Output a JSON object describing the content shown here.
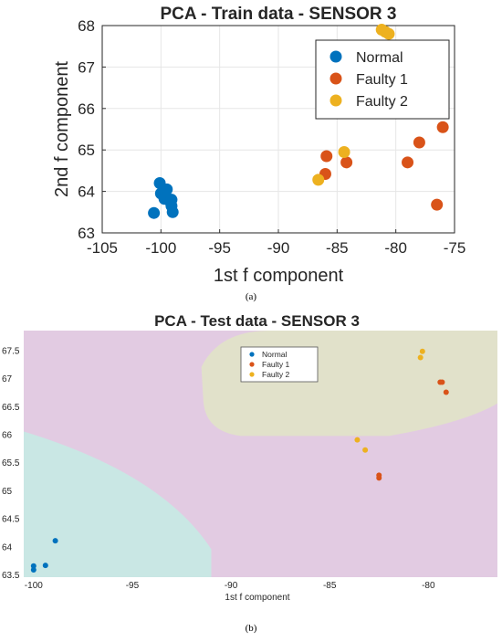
{
  "captions": {
    "a": "(a)",
    "b": "(b)"
  },
  "colors": {
    "normal": "#0072BD",
    "faulty1": "#D95319",
    "faulty2": "#EDB120",
    "region_normal": "#C9E7E4",
    "region_faulty1": "#E2CBE2",
    "region_faulty2": "#E1E1CA"
  },
  "chart_data": [
    {
      "type": "scatter",
      "title": "PCA - Train data - SENSOR 3",
      "xlabel": "1st f component",
      "ylabel": "2nd f component",
      "xlim": [
        -105,
        -75
      ],
      "ylim": [
        63,
        68
      ],
      "xticks": [
        -105,
        -100,
        -95,
        -90,
        -85,
        -80,
        -75
      ],
      "yticks": [
        63,
        64,
        65,
        66,
        67,
        68
      ],
      "grid": true,
      "legend_position": "top-right",
      "series": [
        {
          "name": "Normal",
          "color": "#0072BD",
          "points": [
            [
              -100.6,
              63.48
            ],
            [
              -100.1,
              64.2
            ],
            [
              -100.0,
              63.95
            ],
            [
              -99.7,
              63.82
            ],
            [
              -99.6,
              64.0
            ],
            [
              -99.5,
              64.05
            ],
            [
              -99.2,
              63.75
            ],
            [
              -99.1,
              63.65
            ],
            [
              -99.0,
              63.5
            ],
            [
              -99.1,
              63.8
            ]
          ]
        },
        {
          "name": "Faulty 1",
          "color": "#D95319",
          "points": [
            [
              -86.0,
              64.42
            ],
            [
              -85.9,
              64.85
            ],
            [
              -84.2,
              64.7
            ],
            [
              -79.0,
              64.7
            ],
            [
              -78.0,
              65.18
            ],
            [
              -76.5,
              63.68
            ],
            [
              -76.0,
              65.55
            ]
          ]
        },
        {
          "name": "Faulty 2",
          "color": "#EDB120",
          "points": [
            [
              -86.6,
              64.28
            ],
            [
              -84.4,
              64.95
            ],
            [
              -81.2,
              67.9
            ],
            [
              -80.9,
              67.85
            ],
            [
              -80.6,
              67.8
            ]
          ]
        }
      ]
    },
    {
      "type": "scatter",
      "title": "PCA - Test data - SENSOR 3",
      "xlabel": "1st f component",
      "ylabel": "",
      "xlim": [
        -100.5,
        -76.5
      ],
      "ylim": [
        63.45,
        67.85
      ],
      "xticks": [
        -100,
        -95,
        -90,
        -85,
        -80
      ],
      "yticks": [
        63.5,
        64,
        64.5,
        65,
        65.5,
        66,
        66.5,
        67,
        67.5
      ],
      "grid": false,
      "legend_position": "top-center",
      "background_regions": [
        "Normal",
        "Faulty 1",
        "Faulty 2"
      ],
      "series": [
        {
          "name": "Normal",
          "color": "#0072BD",
          "points": [
            [
              -100.0,
              63.58
            ],
            [
              -100.0,
              63.65
            ],
            [
              -99.4,
              63.66
            ],
            [
              -98.9,
              64.1
            ]
          ]
        },
        {
          "name": "Faulty 1",
          "color": "#D95319",
          "points": [
            [
              -82.5,
              65.22
            ],
            [
              -82.5,
              65.27
            ],
            [
              -79.4,
              66.93
            ],
            [
              -79.3,
              66.93
            ],
            [
              -79.1,
              66.75
            ]
          ]
        },
        {
          "name": "Faulty 2",
          "color": "#EDB120",
          "points": [
            [
              -83.6,
              65.9
            ],
            [
              -83.2,
              65.72
            ],
            [
              -80.4,
              67.37
            ],
            [
              -80.3,
              67.48
            ]
          ]
        }
      ]
    }
  ]
}
